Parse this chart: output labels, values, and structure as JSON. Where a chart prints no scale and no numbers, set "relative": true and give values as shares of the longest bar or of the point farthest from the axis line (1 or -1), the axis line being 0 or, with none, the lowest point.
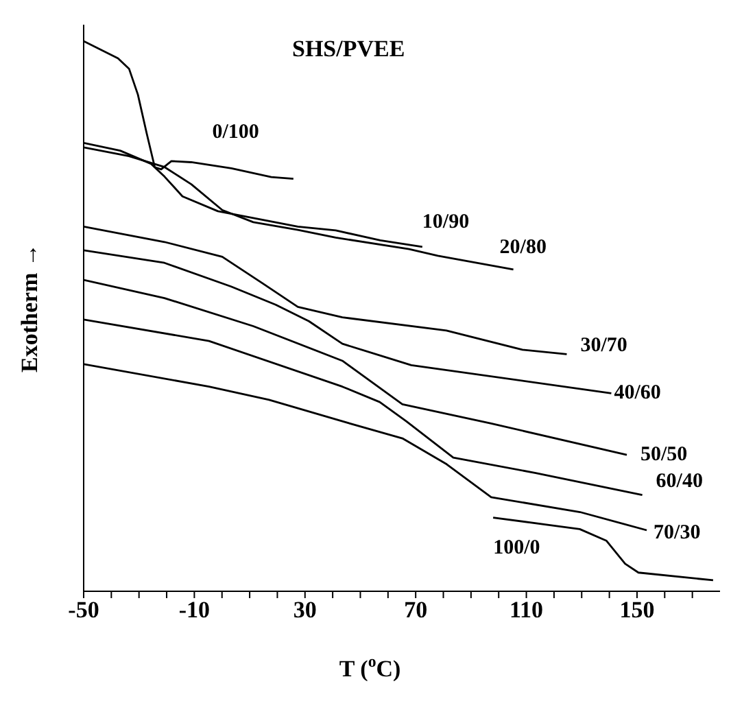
{
  "chart_data": {
    "type": "line",
    "title": "SHS/PVEE",
    "xlabel": "T ($^{o}$C)",
    "ylabel": "Exotherm →",
    "relative": true,
    "xlim": [
      -50,
      180
    ],
    "xticks": [
      -50,
      {
        "value": -40,
        "label": null
      },
      {
        "value": -30,
        "label": null
      },
      {
        "value": -20,
        "label": null
      },
      -10,
      {
        "value": 0,
        "label": null
      },
      {
        "value": 10,
        "label": null
      },
      {
        "value": 20,
        "label": null
      },
      30,
      {
        "value": 40,
        "label": null
      },
      {
        "value": 50,
        "label": null
      },
      {
        "value": 60,
        "label": null
      },
      70,
      {
        "value": 80,
        "label": null
      },
      {
        "value": 90,
        "label": null
      },
      {
        "value": 100,
        "label": null
      },
      110,
      {
        "value": 120,
        "label": null
      },
      {
        "value": 130,
        "label": null
      },
      {
        "value": 140,
        "label": null
      },
      150,
      {
        "value": 160,
        "label": null
      },
      {
        "value": 170,
        "label": null
      }
    ],
    "marker": "none",
    "line_style": "solid",
    "series": [
      {
        "name": "0/100",
        "color": "#000000",
        "x": [
          -50,
          -37.6,
          -33.6,
          -30.4,
          -27.2,
          -24.3,
          -22.0,
          -18.3,
          -11.1,
          3.4,
          17.8,
          25.8
        ],
        "values": [
          1.0,
          0.969,
          0.95,
          0.903,
          0.832,
          0.771,
          0.767,
          0.782,
          0.78,
          0.769,
          0.753,
          0.75
        ]
      },
      {
        "name": "10/90",
        "color": "#000000",
        "x": [
          -50,
          -36.8,
          -25.6,
          -20.8,
          -14.3,
          -1.5,
          27.4,
          41.1,
          57.2,
          72.4
        ],
        "values": [
          0.815,
          0.801,
          0.777,
          0.754,
          0.718,
          0.691,
          0.663,
          0.656,
          0.638,
          0.626
        ]
      },
      {
        "name": "20/80",
        "color": "#000000",
        "x": [
          -50,
          -33.6,
          -20.7,
          -11.1,
          0.1,
          11.3,
          27.4,
          41.1,
          67.6,
          78.0,
          105.3
        ],
        "values": [
          0.807,
          0.791,
          0.771,
          0.74,
          0.693,
          0.671,
          0.657,
          0.643,
          0.622,
          0.61,
          0.585
        ]
      },
      {
        "name": "30/70",
        "color": "#000000",
        "x": [
          -50,
          -20.8,
          0.1,
          14.6,
          27.4,
          43.5,
          81.1,
          108.6,
          124.6
        ],
        "values": [
          0.663,
          0.635,
          0.608,
          0.56,
          0.517,
          0.498,
          0.474,
          0.439,
          0.431
        ]
      },
      {
        "name": "40/60",
        "color": "#000000",
        "x": [
          -50,
          -20.8,
          3.3,
          19.4,
          31.4,
          43.5,
          68.4,
          140.7
        ],
        "values": [
          0.62,
          0.597,
          0.554,
          0.521,
          0.491,
          0.45,
          0.411,
          0.36
        ]
      },
      {
        "name": "50/50",
        "color": "#000000",
        "x": [
          -50,
          -20.8,
          11.3,
          43.5,
          65.2,
          97.3,
          146.3
        ],
        "values": [
          0.566,
          0.533,
          0.482,
          0.419,
          0.34,
          0.305,
          0.248
        ]
      },
      {
        "name": "60/40",
        "color": "#000000",
        "x": [
          -50,
          -4.7,
          43.5,
          57.0,
          66.6,
          83.6,
          113.4,
          151.9
        ],
        "values": [
          0.494,
          0.455,
          0.372,
          0.344,
          0.309,
          0.243,
          0.215,
          0.175
        ]
      },
      {
        "name": "70/30",
        "color": "#000000",
        "x": [
          -50,
          -4.7,
          17.0,
          43.5,
          65.2,
          81.2,
          97.3,
          129.4,
          153.5
        ],
        "values": [
          0.413,
          0.372,
          0.348,
          0.309,
          0.278,
          0.231,
          0.171,
          0.144,
          0.111
        ]
      },
      {
        "name": "100/0",
        "color": "#000000",
        "x": [
          98.0,
          129.3,
          138.9,
          145.7,
          150.5,
          177.5
        ],
        "values": [
          0.134,
          0.113,
          0.092,
          0.05,
          0.034,
          0.02
        ]
      }
    ]
  }
}
